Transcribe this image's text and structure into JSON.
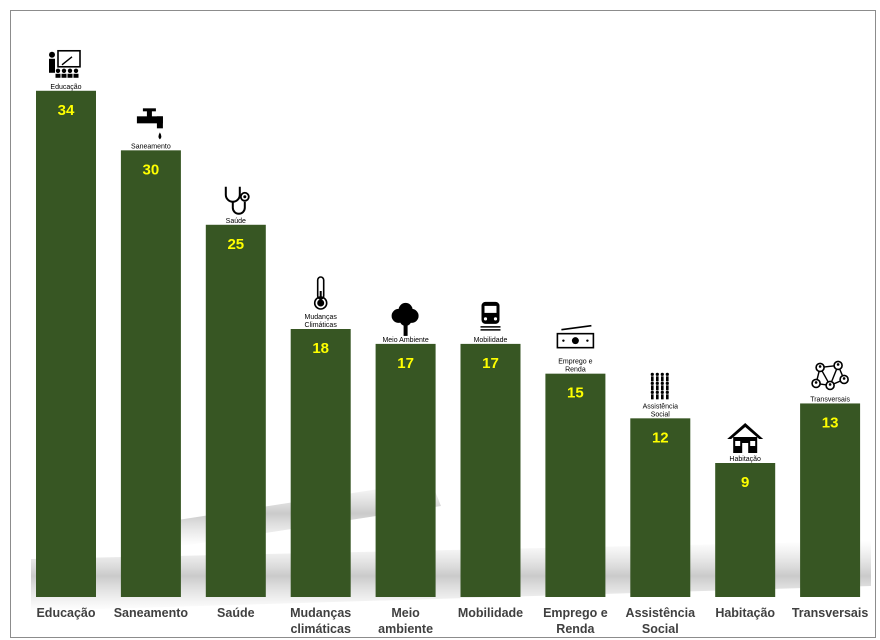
{
  "chart_data": {
    "type": "bar",
    "categories": [
      [
        "Educação"
      ],
      [
        "Saneamento"
      ],
      [
        "Saúde"
      ],
      [
        "Mudanças",
        "climáticas"
      ],
      [
        "Meio",
        "ambiente"
      ],
      [
        "Mobilidade"
      ],
      [
        "Emprego e",
        "Renda"
      ],
      [
        "Assistência",
        "Social"
      ],
      [
        "Habitação"
      ],
      [
        "Transversais"
      ]
    ],
    "values": [
      34,
      30,
      25,
      18,
      17,
      17,
      15,
      12,
      9,
      13
    ],
    "ylim": [
      0,
      36
    ],
    "bar_color": "#375623",
    "value_label_color": "#ffff00",
    "category_label_color": "#404040",
    "grid": false,
    "legend": "none",
    "icons": [
      {
        "name": "teacher-icon",
        "label": [
          "Educação"
        ]
      },
      {
        "name": "faucet-icon",
        "label": [
          "Saneamento"
        ]
      },
      {
        "name": "stethoscope-icon",
        "label": [
          "Saúde"
        ]
      },
      {
        "name": "thermometer-icon",
        "label": [
          "Mudanças",
          "Climáticas"
        ]
      },
      {
        "name": "tree-icon",
        "label": [
          "Meio Ambiente"
        ]
      },
      {
        "name": "train-icon",
        "label": [
          "Mobilidade"
        ]
      },
      {
        "name": "money-icon",
        "label": [
          "Emprego e",
          "Renda"
        ]
      },
      {
        "name": "people-icon",
        "label": [
          "Assistência",
          "Social"
        ]
      },
      {
        "name": "house-icon",
        "label": [
          "Habitação"
        ]
      },
      {
        "name": "network-icon",
        "label": [
          "Transversais"
        ]
      }
    ]
  }
}
